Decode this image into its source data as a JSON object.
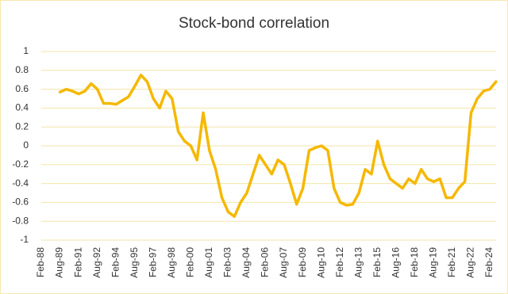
{
  "chart_data": {
    "type": "line",
    "title": "Stock-bond correlation",
    "x": [
      "Aug-89",
      "Feb-90",
      "Aug-90",
      "Feb-91",
      "Aug-91",
      "Feb-92",
      "Aug-92",
      "Feb-93",
      "Aug-93",
      "Feb-94",
      "Aug-94",
      "Feb-95",
      "Aug-95",
      "Feb-96",
      "Aug-96",
      "Feb-97",
      "Aug-97",
      "Feb-98",
      "Aug-98",
      "Feb-99",
      "Aug-99",
      "Feb-00",
      "Aug-00",
      "Feb-01",
      "Aug-01",
      "Feb-02",
      "Aug-02",
      "Feb-03",
      "Aug-03",
      "Feb-04",
      "Aug-04",
      "Feb-05",
      "Aug-05",
      "Feb-06",
      "Aug-06",
      "Feb-07",
      "Aug-07",
      "Feb-08",
      "Aug-08",
      "Feb-09",
      "Aug-09",
      "Feb-10",
      "Aug-10",
      "Feb-11",
      "Aug-11",
      "Feb-12",
      "Aug-12",
      "Feb-13",
      "Aug-13",
      "Feb-14",
      "Aug-14",
      "Feb-15",
      "Aug-15",
      "Feb-16",
      "Aug-16",
      "Feb-17",
      "Aug-17",
      "Feb-18",
      "Aug-18",
      "Feb-19",
      "Aug-19",
      "Feb-20",
      "Aug-20",
      "Feb-21",
      "Aug-21",
      "Feb-22",
      "Aug-22",
      "Feb-23",
      "Aug-23",
      "Feb-24",
      "Aug-24"
    ],
    "series": [
      {
        "color": "#f5b800",
        "values": [
          0.57,
          0.6,
          0.58,
          0.55,
          0.58,
          0.66,
          0.6,
          0.45,
          0.45,
          0.44,
          0.48,
          0.52,
          0.63,
          0.75,
          0.68,
          0.5,
          0.4,
          0.58,
          0.5,
          0.15,
          0.05,
          0.0,
          -0.15,
          0.35,
          -0.05,
          -0.25,
          -0.55,
          -0.7,
          -0.75,
          -0.6,
          -0.5,
          -0.3,
          -0.1,
          -0.2,
          -0.3,
          -0.15,
          -0.2,
          -0.4,
          -0.62,
          -0.45,
          -0.05,
          -0.02,
          0.0,
          -0.05,
          -0.45,
          -0.6,
          -0.63,
          -0.62,
          -0.5,
          -0.25,
          -0.3,
          0.05,
          -0.2,
          -0.35,
          -0.4,
          -0.45,
          -0.35,
          -0.4,
          -0.25,
          -0.35,
          -0.38,
          -0.35,
          -0.55,
          -0.55,
          -0.45,
          -0.38,
          0.35,
          0.5,
          0.58,
          0.6,
          0.68
        ]
      }
    ],
    "xticks": [
      "Feb-88",
      "Aug-89",
      "Feb-91",
      "Aug-92",
      "Feb-94",
      "Aug-95",
      "Feb-97",
      "Aug-98",
      "Feb-00",
      "Aug-01",
      "Feb-03",
      "Aug-04",
      "Feb-06",
      "Aug-07",
      "Feb-09",
      "Aug-10",
      "Feb-12",
      "Aug-13",
      "Feb-15",
      "Aug-16",
      "Feb-18",
      "Aug-19",
      "Feb-21",
      "Aug-22",
      "Feb-24"
    ],
    "ylim": [
      -1,
      1
    ],
    "yticks": [
      1,
      0.8,
      0.6,
      0.4,
      0.2,
      0,
      -0.2,
      -0.4,
      -0.6,
      -0.8,
      -1
    ],
    "grid": true
  }
}
